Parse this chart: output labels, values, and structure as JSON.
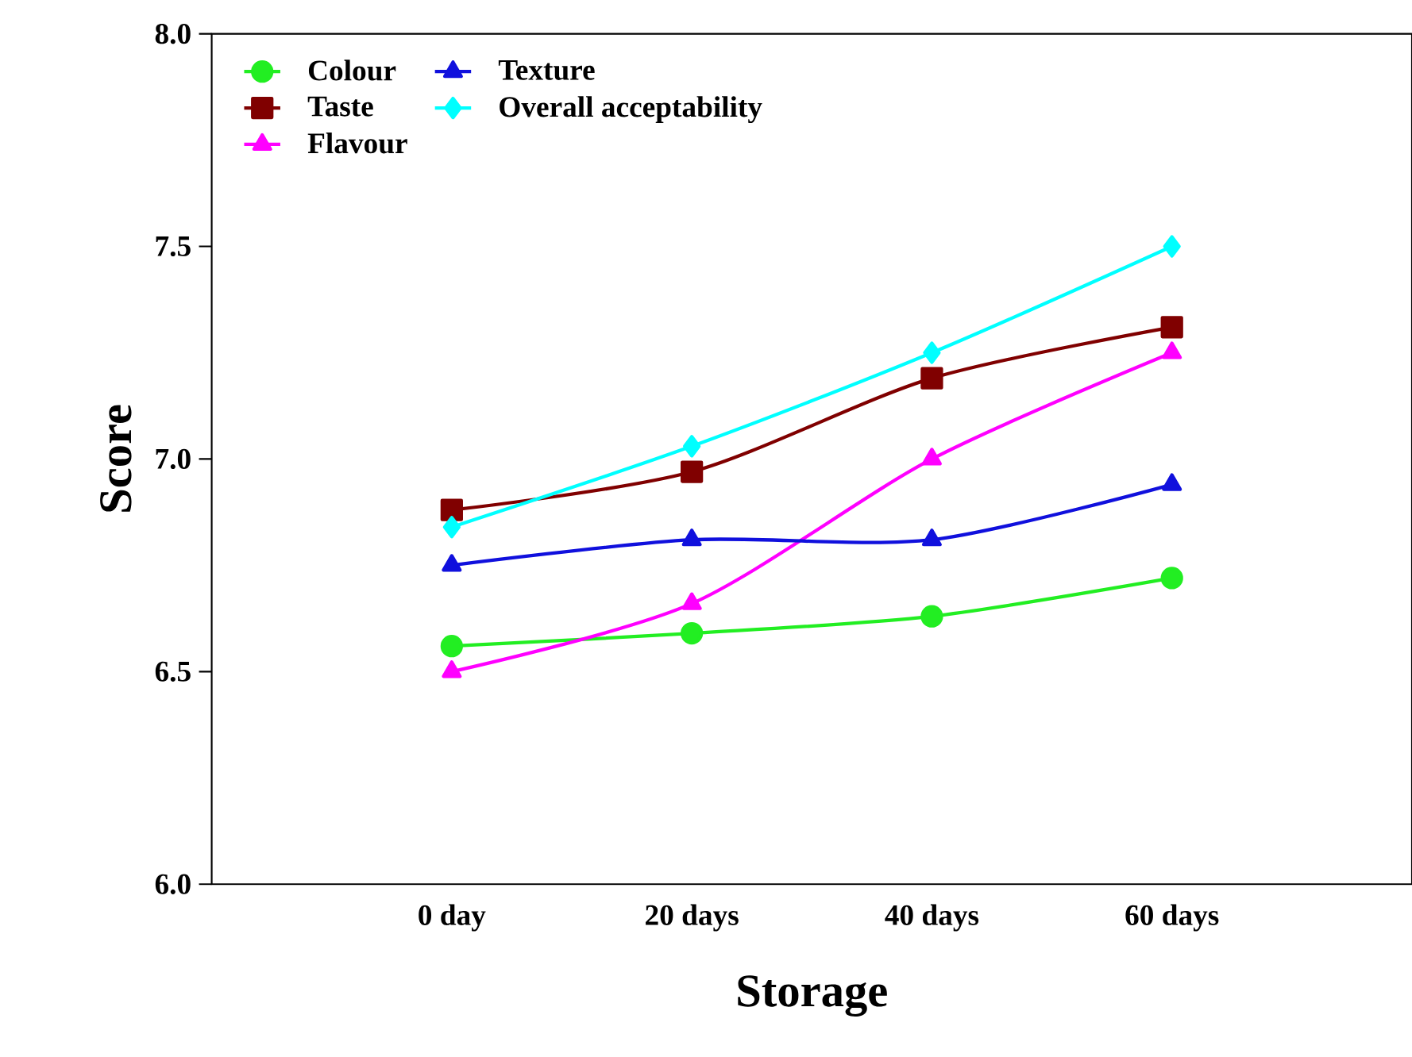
{
  "chart_data": {
    "type": "line",
    "xlabel": "Storage",
    "ylabel": "Score",
    "categories": [
      "0 day",
      "20 days",
      "40 days",
      "60 days"
    ],
    "ylim": [
      6.0,
      8.0
    ],
    "yticks": [
      {
        "value": 6.0,
        "label": "6.0"
      },
      {
        "value": 6.5,
        "label": "6.5"
      },
      {
        "value": 7.0,
        "label": "7.0"
      },
      {
        "value": 7.5,
        "label": "7.5"
      },
      {
        "value": 8.0,
        "label": "8.0"
      }
    ],
    "legend": "top left",
    "grid": false,
    "series": [
      {
        "name": "Colour",
        "color": "#22ee22",
        "marker": "circle",
        "values": [
          6.56,
          6.59,
          6.63,
          6.72
        ]
      },
      {
        "name": "Taste",
        "color": "#800000",
        "marker": "square",
        "values": [
          6.88,
          6.97,
          7.19,
          7.31
        ]
      },
      {
        "name": "Flavour",
        "color": "#ff00ff",
        "marker": "triangle",
        "values": [
          6.5,
          6.66,
          7.0,
          7.25
        ]
      },
      {
        "name": "Texture",
        "color": "#1010dd",
        "marker": "triangle-down",
        "values": [
          6.75,
          6.81,
          6.81,
          6.94
        ]
      },
      {
        "name": "Overall acceptability",
        "color": "#00ffff",
        "marker": "diamond",
        "values": [
          6.84,
          7.03,
          7.25,
          7.5
        ]
      }
    ]
  }
}
